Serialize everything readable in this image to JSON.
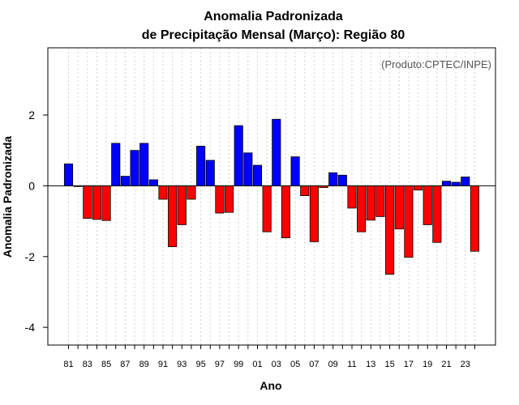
{
  "chart_data": {
    "type": "bar",
    "title": "Anomalia Padronizada",
    "subtitle": "de Precipitação Mensal (Março): Região 80",
    "xlabel": "Ano",
    "ylabel": "Anomalia Padronizada",
    "annotation": "(Produto:CPTEC/INPE)",
    "ylim": [
      -4.5,
      3.9
    ],
    "yticks": [
      -4,
      -2,
      0,
      2
    ],
    "categories": [
      "81",
      "82",
      "83",
      "84",
      "85",
      "86",
      "87",
      "88",
      "89",
      "90",
      "91",
      "92",
      "93",
      "94",
      "95",
      "96",
      "97",
      "98",
      "99",
      "00",
      "01",
      "02",
      "03",
      "04",
      "05",
      "06",
      "07",
      "08",
      "09",
      "10",
      "11",
      "12",
      "13",
      "14",
      "15",
      "16",
      "17",
      "18",
      "19",
      "20",
      "21",
      "22",
      "23",
      "24"
    ],
    "xtick_labels": [
      "81",
      "83",
      "85",
      "87",
      "89",
      "91",
      "93",
      "95",
      "97",
      "99",
      "01",
      "03",
      "05",
      "07",
      "09",
      "11",
      "13",
      "15",
      "17",
      "19",
      "21",
      "23"
    ],
    "values": [
      0.62,
      -0.02,
      -0.92,
      -0.95,
      -0.98,
      1.2,
      0.27,
      1.0,
      1.2,
      0.17,
      -0.38,
      -1.72,
      -1.1,
      -0.38,
      1.12,
      0.72,
      -0.77,
      -0.75,
      1.7,
      0.93,
      0.58,
      -1.3,
      1.88,
      -1.47,
      0.82,
      -0.28,
      -1.58,
      -0.05,
      0.37,
      0.3,
      -0.63,
      -1.3,
      -0.97,
      -0.87,
      -2.5,
      -1.22,
      -2.02,
      -0.12,
      -1.1,
      -1.6,
      0.13,
      0.1,
      0.25,
      -1.85
    ],
    "colors": {
      "positive": "#0000ff",
      "negative": "#ff0000",
      "frame": "#000000",
      "grid": "#d0d0d0"
    },
    "grid": "vertical dotted"
  }
}
